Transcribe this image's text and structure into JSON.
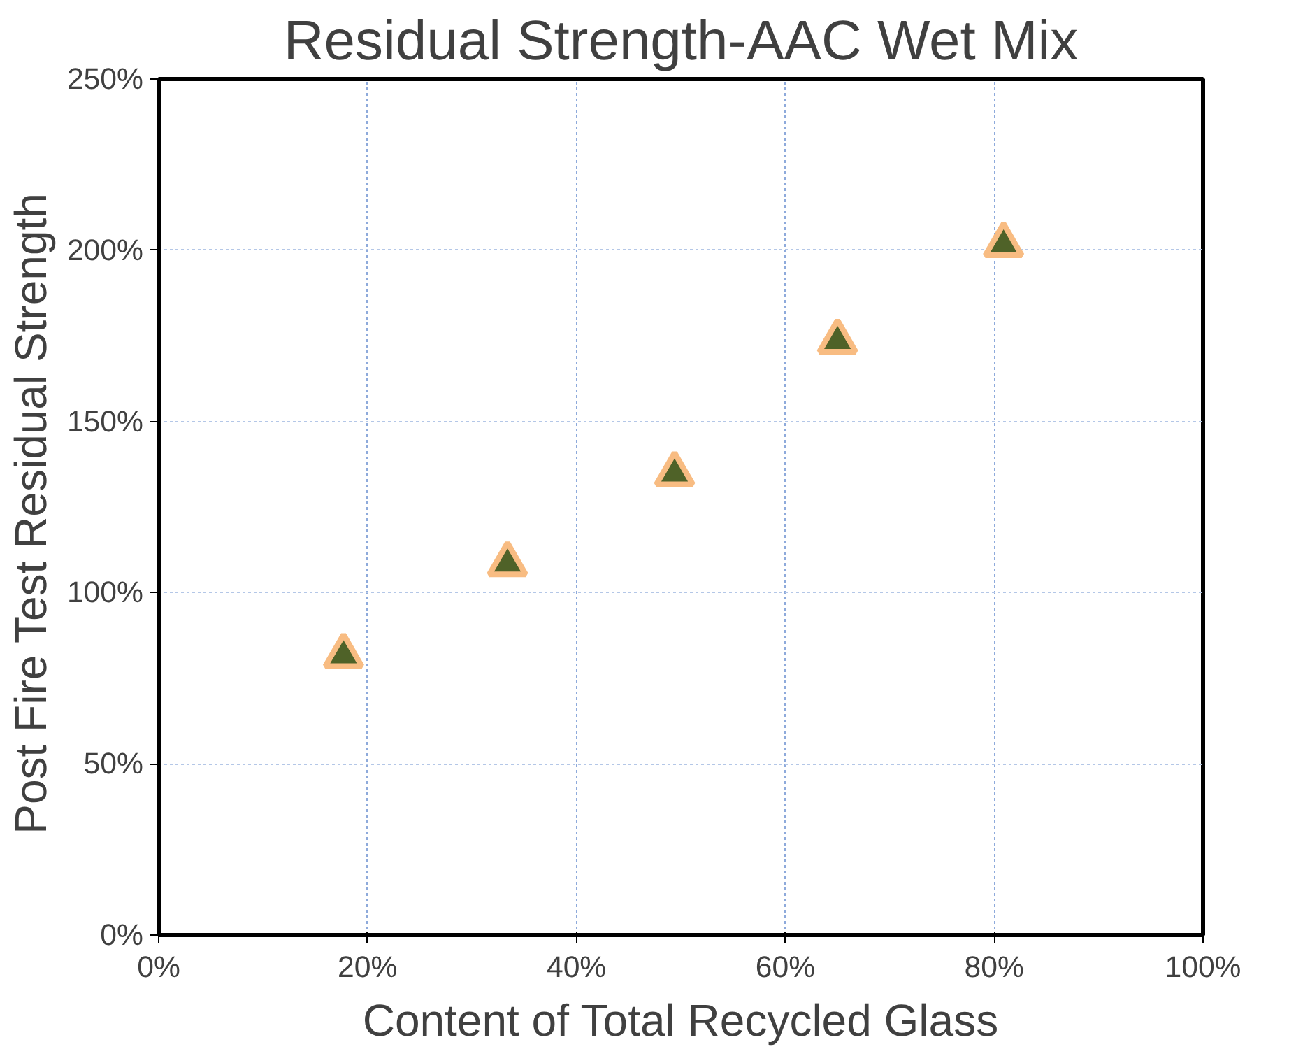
{
  "chart_data": {
    "type": "scatter",
    "title": "Residual Strength-AAC Wet Mix",
    "xlabel": "Content of Total Recycled Glass",
    "ylabel": "Post Fire Test  Residual Strength",
    "x": [
      17.7,
      33.4,
      49.4,
      65.0,
      80.9
    ],
    "series": [
      {
        "color": "#4f6228",
        "values": [
          81.6,
          108.4,
          134.7,
          173.4,
          201.6
        ]
      }
    ],
    "marker": "triangle",
    "grid": true,
    "xlim": [
      0,
      100
    ],
    "ylim": [
      0,
      250
    ],
    "xticks": [
      {
        "value": 0,
        "label": "0%"
      },
      {
        "value": 20,
        "label": "20%"
      },
      {
        "value": 40,
        "label": "40%"
      },
      {
        "value": 60,
        "label": "60%"
      },
      {
        "value": 80,
        "label": "80%"
      },
      {
        "value": 100,
        "label": "100%"
      }
    ],
    "yticks": [
      {
        "value": 0,
        "label": "0%"
      },
      {
        "value": 50,
        "label": "50%"
      },
      {
        "value": 100,
        "label": "100%"
      },
      {
        "value": 150,
        "label": "150%"
      },
      {
        "value": 200,
        "label": "200%"
      },
      {
        "value": 250,
        "label": "250%"
      }
    ]
  }
}
